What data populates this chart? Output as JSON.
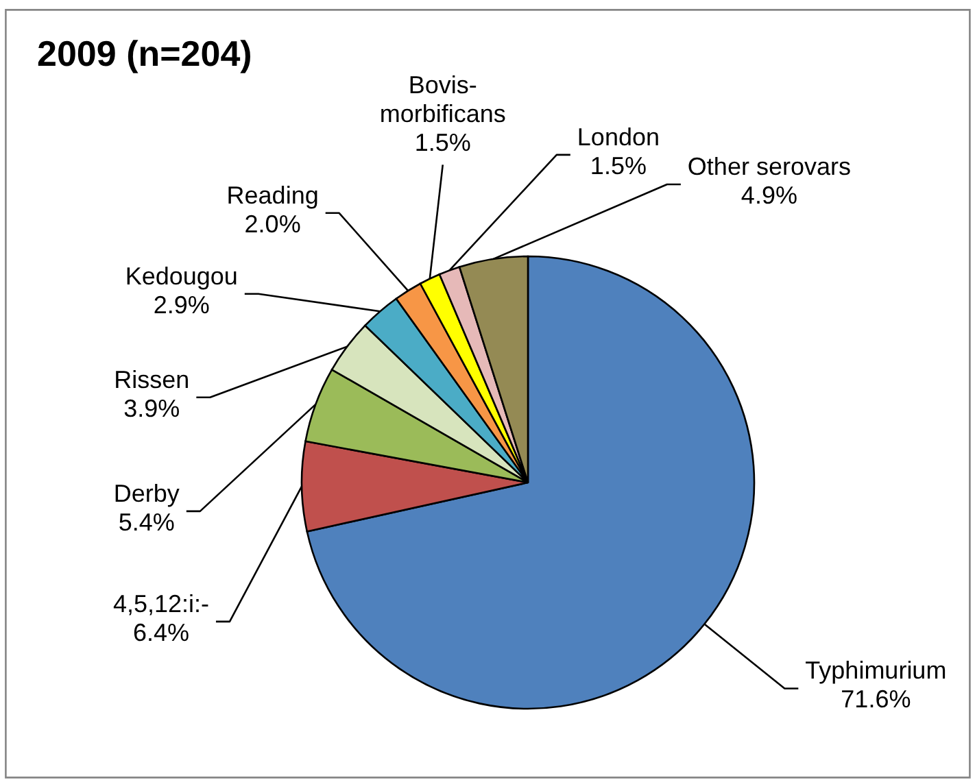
{
  "chart_data": {
    "type": "pie",
    "title": "2009 (n=204)",
    "categories": [
      "Typhimurium",
      "4,5,12:i:-",
      "Derby",
      "Rissen",
      "Kedougou",
      "Reading",
      "Bovis-morbificans",
      "London",
      "Other serovars"
    ],
    "values": [
      71.6,
      6.4,
      5.4,
      3.9,
      2.9,
      2.0,
      1.5,
      1.5,
      4.9
    ],
    "colors": [
      "#4f81bd",
      "#c0504d",
      "#9bbb59",
      "#d7e4bd",
      "#4bacc6",
      "#f79646",
      "#ffff00",
      "#e6b9b8",
      "#948a54"
    ],
    "value_labels": [
      "71.6%",
      "6.4%",
      "5.4%",
      "3.9%",
      "2.9%",
      "2.0%",
      "1.5%",
      "1.5%",
      "4.9%"
    ]
  }
}
